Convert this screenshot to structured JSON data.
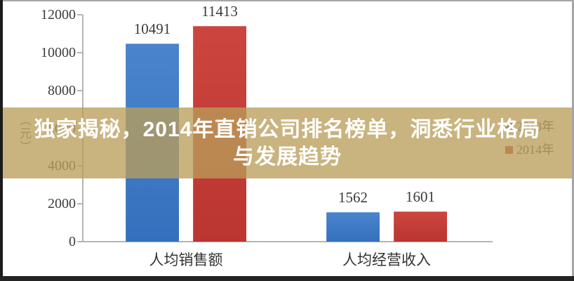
{
  "chart_data": {
    "type": "bar",
    "categories": [
      "人均销售额",
      "人均经营收入"
    ],
    "series": [
      {
        "name": "2013年",
        "color": "#3a76c4",
        "values": [
          10491,
          1562
        ]
      },
      {
        "name": "2014年",
        "color": "#c23a35",
        "values": [
          11413,
          1601
        ]
      }
    ],
    "value_labels": [
      [
        "10491",
        "1562"
      ],
      [
        "11413",
        "1601"
      ]
    ],
    "ylabel": "（元）",
    "ylim": [
      0,
      12000
    ],
    "ytick_step": 2000,
    "ytick_labels": [
      "0",
      "2000",
      "4000",
      "6000",
      "8000",
      "10000",
      "12000"
    ],
    "grid": false,
    "legend_position": "right-middle",
    "axis_color": "#b3b7b1"
  },
  "overlay": {
    "title_line1": "独家揭秘，2014年直销公司排名榜单，洞悉行业格局",
    "title_line2": "与发展趋势",
    "band_color_hex": "#ba9e5a",
    "title_color": "#ffffff"
  }
}
